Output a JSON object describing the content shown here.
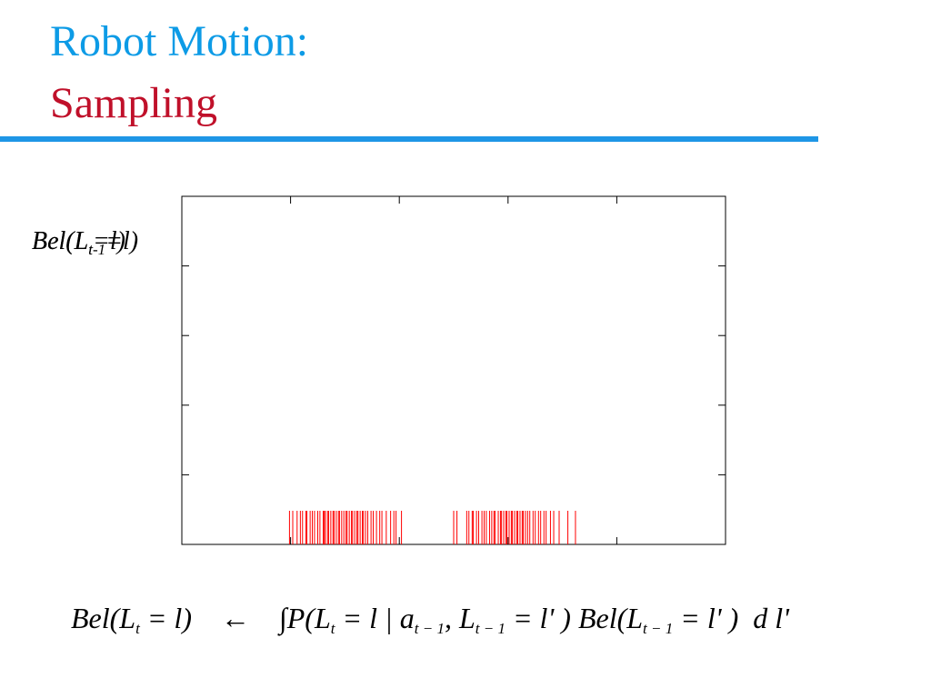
{
  "title_line1": "Robot Motion:",
  "title_line2": "Sampling",
  "chart_data": {
    "type": "rug",
    "y_labels": [
      [
        {
          "text": "Bel(L"
        },
        {
          "text": "t-1",
          "sub": true
        },
        {
          "text": "=l)"
        }
      ],
      [
        {
          "text": "Bel(L"
        },
        {
          "text": "t",
          "sub": true
        },
        {
          "text": "=l)"
        }
      ]
    ],
    "color": "#ff0000",
    "xlim": [
      0,
      5
    ],
    "xticks": [
      0,
      1,
      2,
      3,
      4,
      5
    ],
    "ylim": [
      0,
      5
    ],
    "yticks": [
      0,
      1,
      2,
      3,
      4,
      5
    ],
    "x": [
      0.99,
      1.02,
      1.06,
      1.09,
      1.11,
      1.14,
      1.15,
      1.18,
      1.2,
      1.22,
      1.25,
      1.27,
      1.3,
      1.31,
      1.32,
      1.34,
      1.35,
      1.37,
      1.39,
      1.4,
      1.42,
      1.44,
      1.45,
      1.47,
      1.49,
      1.51,
      1.52,
      1.54,
      1.56,
      1.57,
      1.59,
      1.61,
      1.62,
      1.64,
      1.66,
      1.67,
      1.69,
      1.71,
      1.74,
      1.76,
      1.79,
      1.82,
      1.84,
      1.88,
      1.92,
      1.95,
      1.97,
      2.02,
      2.5,
      2.53,
      2.62,
      2.64,
      2.67,
      2.68,
      2.71,
      2.73,
      2.76,
      2.78,
      2.8,
      2.83,
      2.85,
      2.87,
      2.88,
      2.91,
      2.93,
      2.94,
      2.96,
      2.98,
      2.99,
      3.01,
      3.03,
      3.04,
      3.06,
      3.08,
      3.09,
      3.11,
      3.13,
      3.14,
      3.16,
      3.18,
      3.2,
      3.23,
      3.25,
      3.28,
      3.3,
      3.33,
      3.35,
      3.39,
      3.42,
      3.47,
      3.55,
      3.62
    ]
  },
  "formula": [
    {
      "text": "Bel(L"
    },
    {
      "text": "t",
      "sub": true
    },
    {
      "text": " = l)    ←    "
    },
    {
      "text": "∫P(L"
    },
    {
      "text": "t",
      "sub": true
    },
    {
      "text": " = l | a"
    },
    {
      "text": "t − 1",
      "sub": true
    },
    {
      "text": ", L"
    },
    {
      "text": "t − 1",
      "sub": true
    },
    {
      "text": " = l' ) Bel(L"
    },
    {
      "text": "t − 1",
      "sub": true
    },
    {
      "text": " = l' )  d l'"
    }
  ]
}
